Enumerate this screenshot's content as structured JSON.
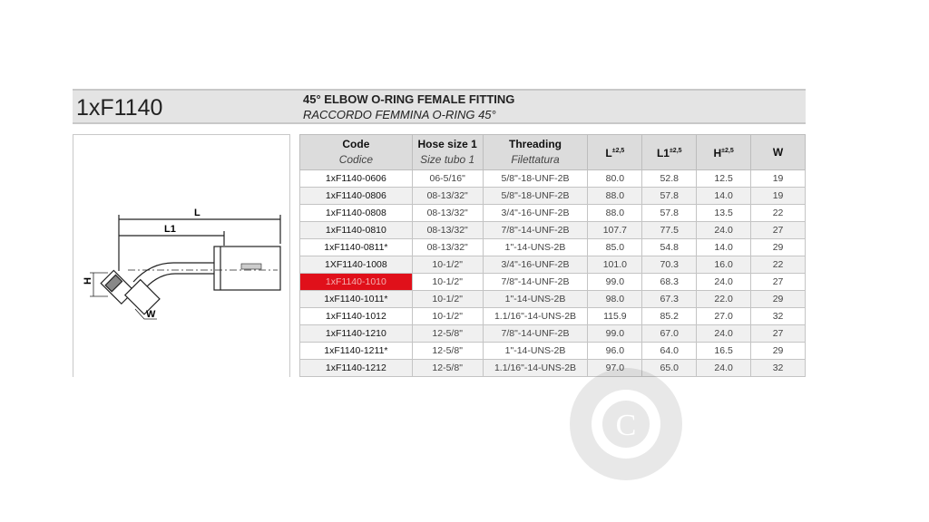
{
  "header": {
    "model": "1xF1140",
    "title_en": "45° ELBOW O-RING FEMALE FITTING",
    "title_it": "RACCORDO FEMMINA O-RING 45°"
  },
  "drawing": {
    "label_L": "L",
    "label_L1": "L1",
    "label_H": "H",
    "label_W": "W"
  },
  "table": {
    "columns": [
      {
        "en": "Code",
        "it": "Codice"
      },
      {
        "en": "Hose size 1",
        "it": "Size tubo 1"
      },
      {
        "en": "Threading",
        "it": "Filettatura"
      },
      {
        "en": "L",
        "tol": "±2,5"
      },
      {
        "en": "L1",
        "tol": "±2,5"
      },
      {
        "en": "H",
        "tol": "±2,5"
      },
      {
        "en": "W"
      }
    ],
    "highlight_color": "#e0101a",
    "rows": [
      [
        "1xF1140-0606",
        "06-5/16\"",
        "5/8\"-18-UNF-2B",
        "80.0",
        "52.8",
        "12.5",
        "19"
      ],
      [
        "1xF1140-0806",
        "08-13/32\"",
        "5/8\"-18-UNF-2B",
        "88.0",
        "57.8",
        "14.0",
        "19"
      ],
      [
        "1xF1140-0808",
        "08-13/32\"",
        "3/4\"-16-UNF-2B",
        "88.0",
        "57.8",
        "13.5",
        "22"
      ],
      [
        "1xF1140-0810",
        "08-13/32\"",
        "7/8\"-14-UNF-2B",
        "107.7",
        "77.5",
        "24.0",
        "27"
      ],
      [
        "1xF1140-0811*",
        "08-13/32\"",
        "1\"-14-UNS-2B",
        "85.0",
        "54.8",
        "14.0",
        "29"
      ],
      [
        "1XF1140-1008",
        "10-1/2\"",
        "3/4\"-16-UNF-2B",
        "101.0",
        "70.3",
        "16.0",
        "22"
      ],
      [
        "1xF1140-1010",
        "10-1/2\"",
        "7/8\"-14-UNF-2B",
        "99.0",
        "68.3",
        "24.0",
        "27"
      ],
      [
        "1xF1140-1011*",
        "10-1/2\"",
        "1\"-14-UNS-2B",
        "98.0",
        "67.3",
        "22.0",
        "29"
      ],
      [
        "1xF1140-1012",
        "10-1/2\"",
        "1.1/16\"-14-UNS-2B",
        "115.9",
        "85.2",
        "27.0",
        "32"
      ],
      [
        "1xF1140-1210",
        "12-5/8\"",
        "7/8\"-14-UNF-2B",
        "99.0",
        "67.0",
        "24.0",
        "27"
      ],
      [
        "1xF1140-1211*",
        "12-5/8\"",
        "1\"-14-UNS-2B",
        "96.0",
        "64.0",
        "16.5",
        "29"
      ],
      [
        "1xF1140-1212",
        "12-5/8\"",
        "1.1/16\"-14-UNS-2B",
        "97.0",
        "65.0",
        "24.0",
        "32"
      ]
    ]
  },
  "watermark": {
    "letter": "C"
  }
}
